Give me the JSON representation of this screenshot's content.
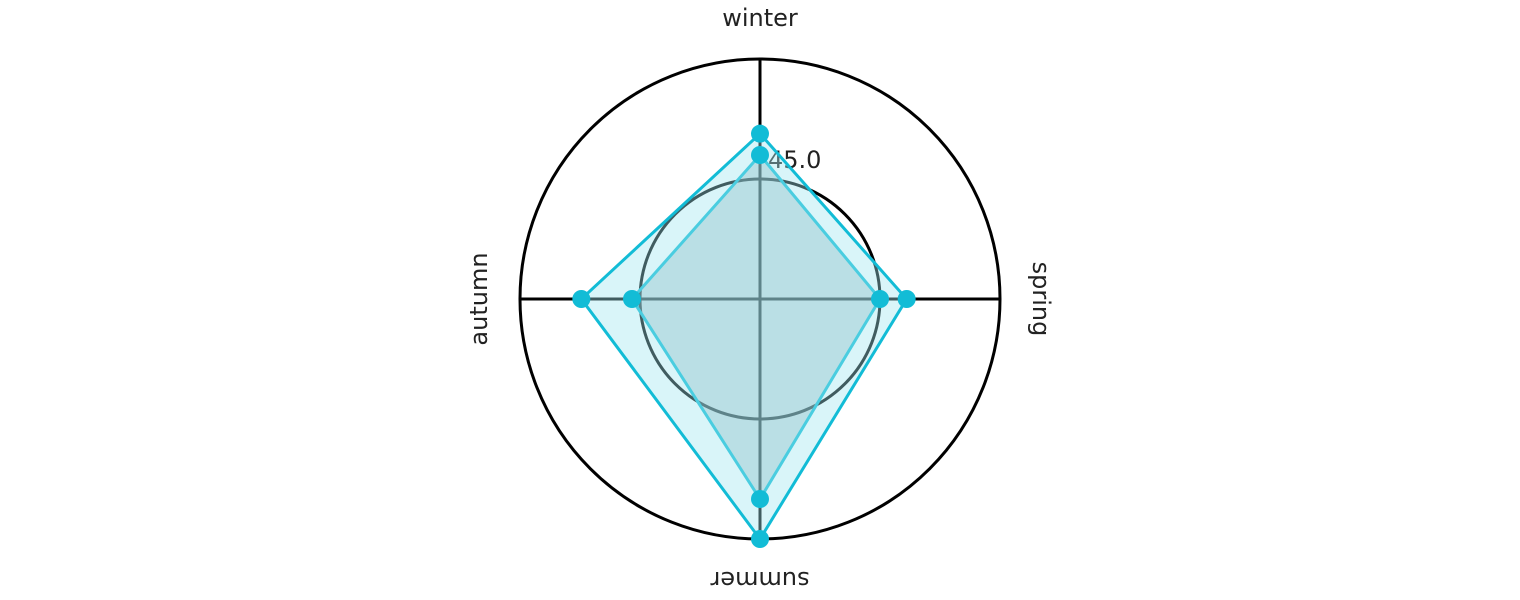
{
  "chart_data": {
    "type": "radar",
    "categories": [
      "winter",
      "spring",
      "summer",
      "autumn"
    ],
    "series": [
      {
        "color": "#12bcd6",
        "fill": "#7fa6ad",
        "values": [
          54,
          45,
          75,
          48
        ]
      },
      {
        "color": "#12bcd6",
        "fill": "#9fe6f0",
        "values": [
          62,
          55,
          90,
          67
        ]
      }
    ],
    "rlim": [
      0,
      90
    ],
    "rticks": [
      {
        "value": 45,
        "label": "45.0"
      }
    ],
    "grid": true
  }
}
